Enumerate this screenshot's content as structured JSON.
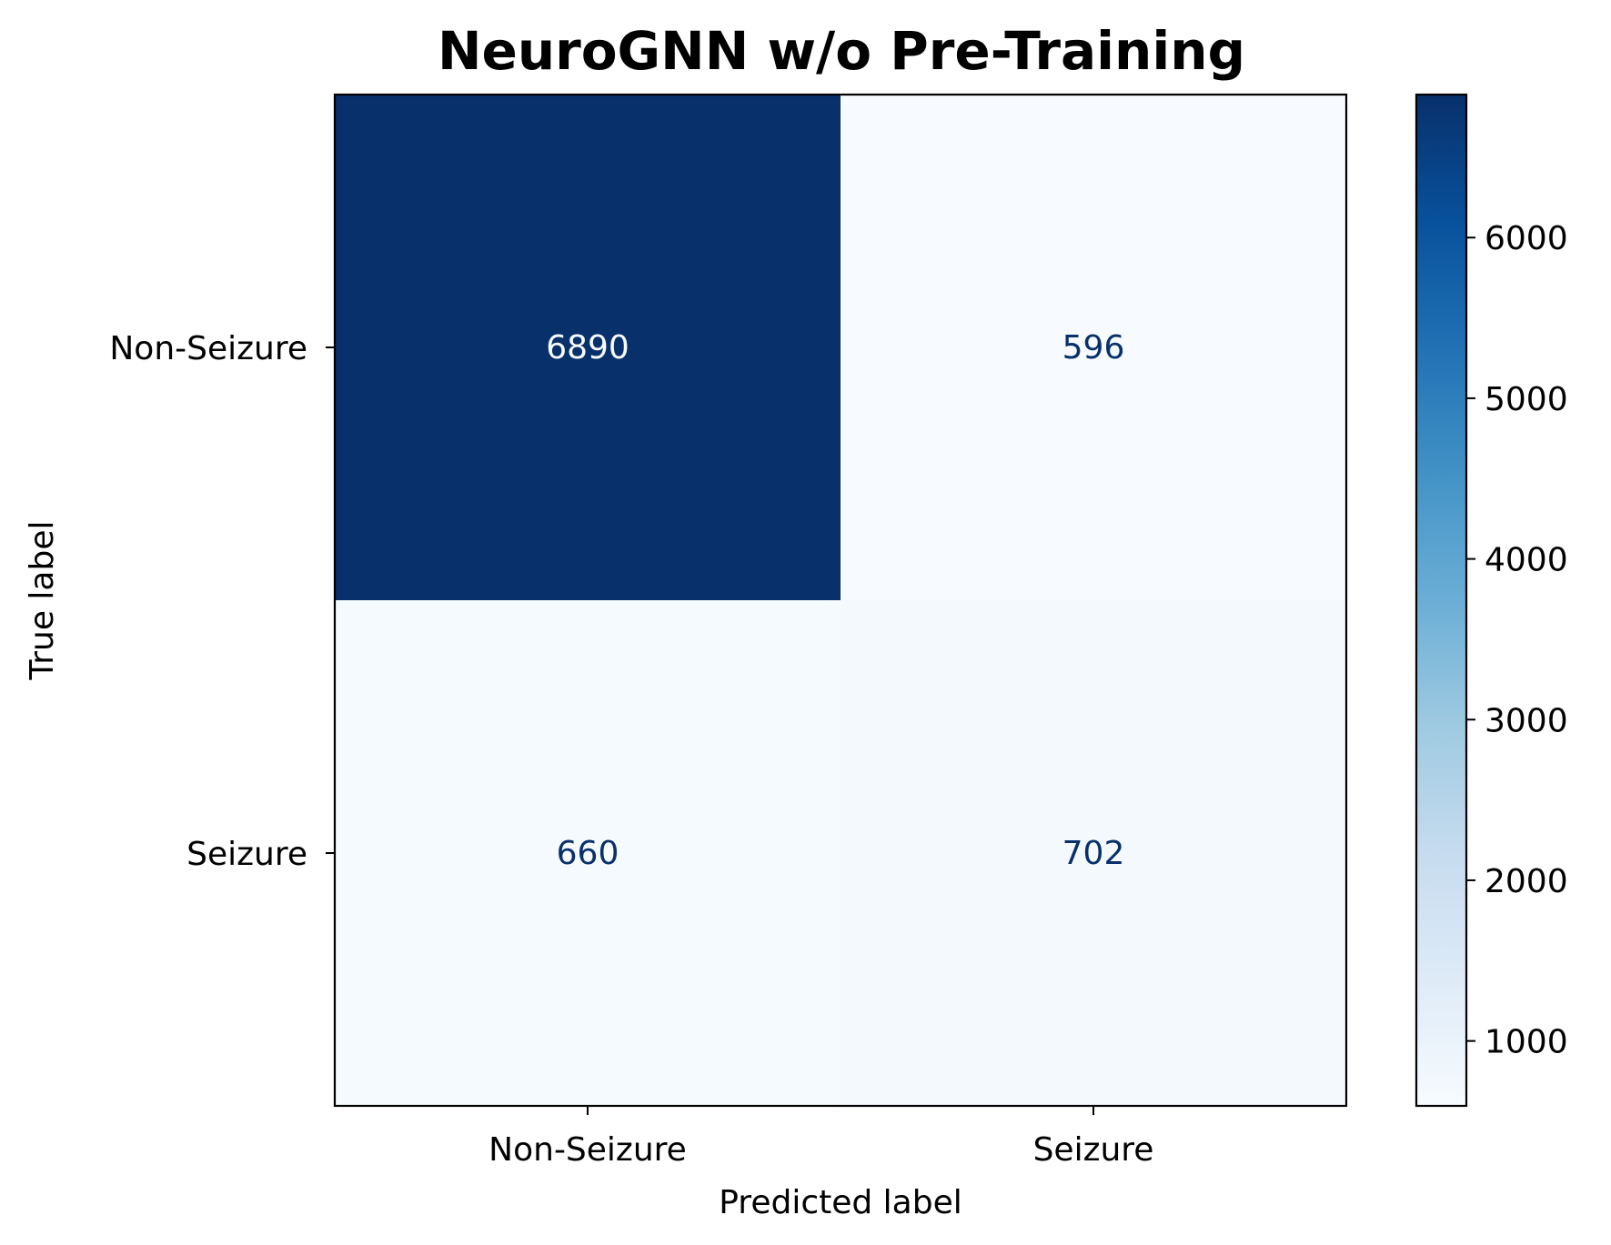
{
  "chart_data": {
    "type": "heatmap",
    "title": "NeuroGNN w/o Pre-Training",
    "xlabel": "Predicted label",
    "ylabel": "True label",
    "x_categories": [
      "Non-Seizure",
      "Seizure"
    ],
    "y_categories": [
      "Non-Seizure",
      "Seizure"
    ],
    "values": [
      [
        6890,
        596
      ],
      [
        660,
        702
      ]
    ],
    "colormap": "Blues",
    "colorbar": {
      "min": 596,
      "max": 6890,
      "ticks": [
        1000,
        2000,
        3000,
        4000,
        5000,
        6000
      ],
      "tick_labels": [
        "1000",
        "2000",
        "3000",
        "4000",
        "5000",
        "6000"
      ]
    }
  }
}
